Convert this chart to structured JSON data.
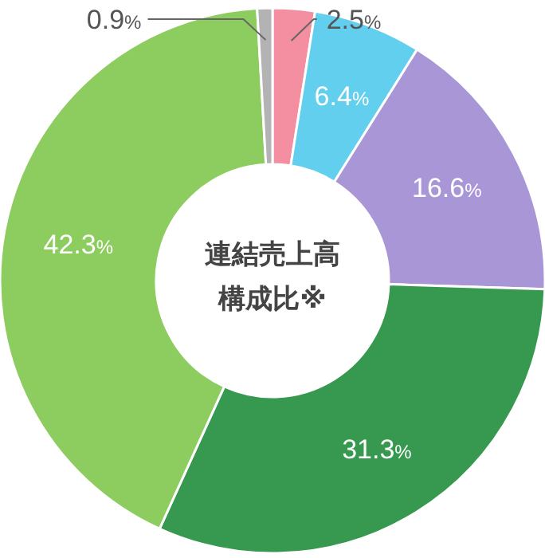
{
  "chart_data": {
    "type": "donut",
    "title": "連結売上高構成比※",
    "categories": [
      null,
      null,
      null,
      null,
      null,
      null
    ],
    "values": [
      2.5,
      6.4,
      16.6,
      31.3,
      42.3,
      0.9
    ],
    "colors": [
      "#f38fa0",
      "#62cfee",
      "#a996d7",
      "#36994f",
      "#8dcd5f",
      "#b3b3b3"
    ],
    "value_labels": [
      "2.5%",
      "6.4%",
      "16.6%",
      "31.3%",
      "42.3%",
      "0.9%"
    ]
  }
}
